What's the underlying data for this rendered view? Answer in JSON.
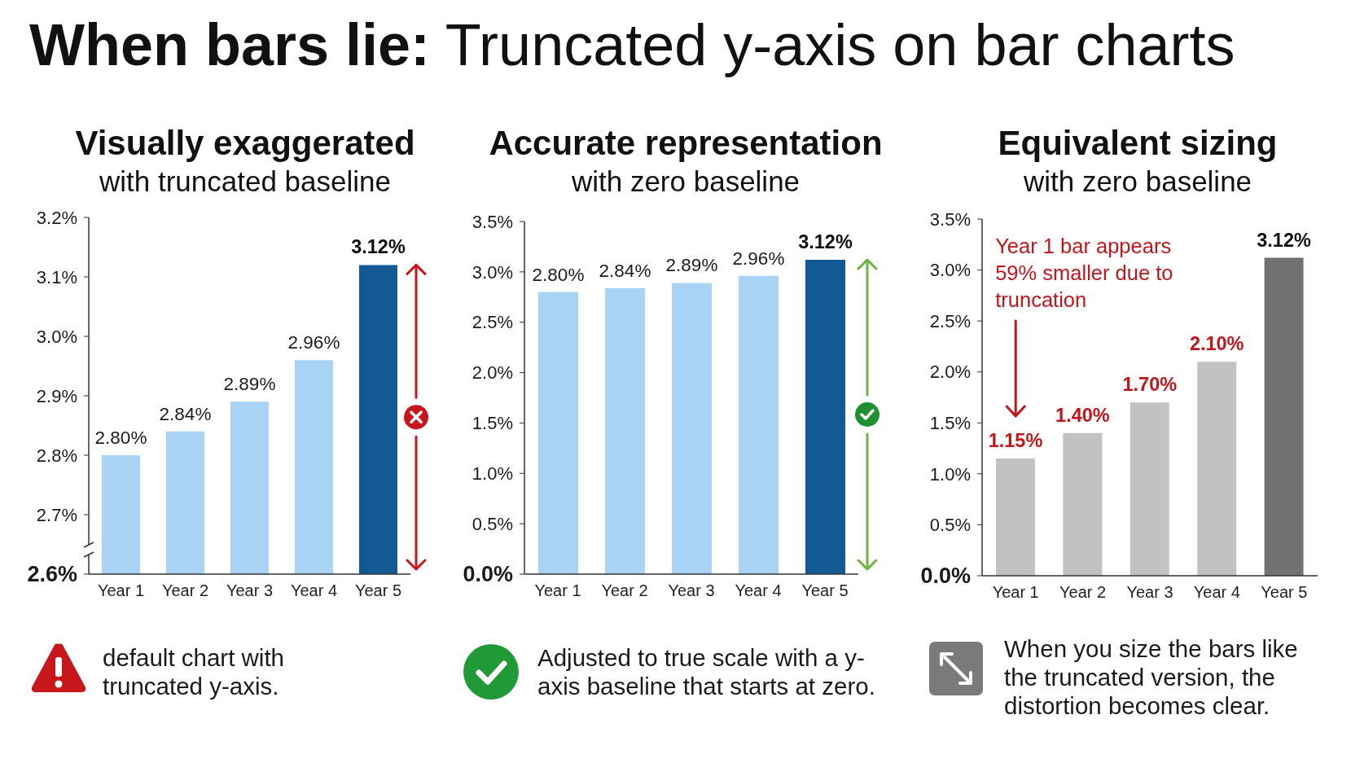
{
  "chart_data": [
    {
      "type": "other",
      "title": "When bars lie: Truncated y-axis on bar charts"
    },
    {
      "type": "bar",
      "title": "Visually exaggerated",
      "subtitle": "with truncated baseline",
      "categories": [
        "Year 1",
        "Year 2",
        "Year 3",
        "Year 4",
        "Year 5"
      ],
      "values": [
        2.8,
        2.84,
        2.89,
        2.96,
        3.12
      ],
      "value_labels": [
        "2.80%",
        "2.84%",
        "2.89%",
        "2.96%",
        "3.12%"
      ],
      "colors": [
        "#a9d3f4",
        "#a9d3f4",
        "#a9d3f4",
        "#a9d3f4",
        "#135a94"
      ],
      "ylim": [
        2.6,
        3.2
      ],
      "yticks": [
        {
          "value": 2.6,
          "label": "2.6%"
        },
        {
          "value": 2.7,
          "label": "2.7%"
        },
        {
          "value": 2.8,
          "label": "2.8%"
        },
        {
          "value": 2.9,
          "label": "2.9%"
        },
        {
          "value": 3.0,
          "label": "3.0%"
        },
        {
          "value": 3.1,
          "label": "3.1%"
        },
        {
          "value": 3.2,
          "label": "3.2%"
        }
      ],
      "annotations": [
        "default chart with truncated y-axis."
      ]
    },
    {
      "type": "bar",
      "title": "Accurate representation",
      "subtitle": "with zero baseline",
      "categories": [
        "Year 1",
        "Year 2",
        "Year 3",
        "Year 4",
        "Year 5"
      ],
      "values": [
        2.8,
        2.84,
        2.89,
        2.96,
        3.12
      ],
      "value_labels": [
        "2.80%",
        "2.84%",
        "2.89%",
        "2.96%",
        "3.12%"
      ],
      "colors": [
        "#a9d3f4",
        "#a9d3f4",
        "#a9d3f4",
        "#a9d3f4",
        "#135a94"
      ],
      "ylim": [
        0,
        3.5
      ],
      "yticks": [
        {
          "value": 0,
          "label": "0.0%"
        },
        {
          "value": 0.5,
          "label": "0.5%"
        },
        {
          "value": 1.0,
          "label": "1.0%"
        },
        {
          "value": 1.5,
          "label": "1.5%"
        },
        {
          "value": 2.0,
          "label": "2.0%"
        },
        {
          "value": 2.5,
          "label": "2.5%"
        },
        {
          "value": 3.0,
          "label": "3.0%"
        },
        {
          "value": 3.5,
          "label": "3.5%"
        }
      ],
      "annotations": [
        "Adjusted to true scale with a y-axis baseline that starts at zero."
      ]
    },
    {
      "type": "bar",
      "title": "Equivalent sizing",
      "subtitle": "with zero baseline",
      "categories": [
        "Year 1",
        "Year 2",
        "Year 3",
        "Year 4",
        "Year 5"
      ],
      "values": [
        1.15,
        1.4,
        1.7,
        2.1,
        3.12
      ],
      "value_labels": [
        "1.15%",
        "1.40%",
        "1.70%",
        "2.10%",
        "3.12%"
      ],
      "colors": [
        "#c2c2c2",
        "#c2c2c2",
        "#c2c2c2",
        "#c2c2c2",
        "#727272"
      ],
      "ylim": [
        0,
        3.5
      ],
      "yticks": [
        {
          "value": 0,
          "label": "0.0%"
        },
        {
          "value": 0.5,
          "label": "0.5%"
        },
        {
          "value": 1.0,
          "label": "1.0%"
        },
        {
          "value": 1.5,
          "label": "1.5%"
        },
        {
          "value": 2.0,
          "label": "2.0%"
        },
        {
          "value": 2.5,
          "label": "2.5%"
        },
        {
          "value": 3.0,
          "label": "3.0%"
        },
        {
          "value": 3.5,
          "label": "3.5%"
        }
      ],
      "annotations": [
        "Year 1 bar appears 59% smaller due to truncation",
        "When you size the bars like the truncated version, the distortion becomes clear."
      ]
    }
  ]
}
